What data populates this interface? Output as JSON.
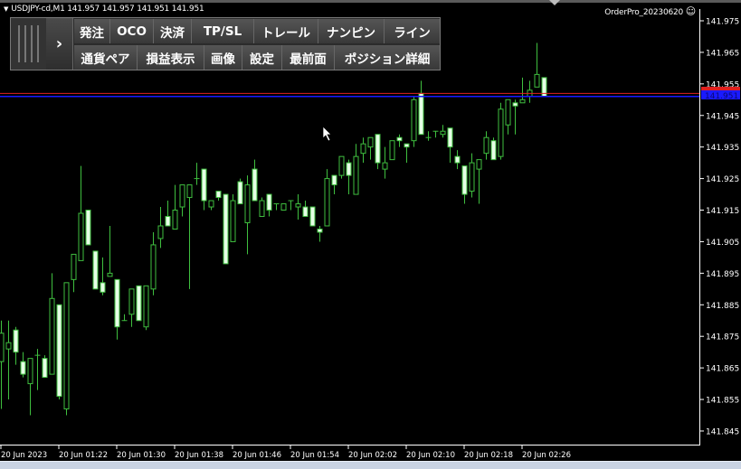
{
  "window": {
    "info_line": "USDJPY-cd,M1  141.957 141.957 141.951 141.951",
    "ea_name": "OrderPro_20230620",
    "ea_icon": "smiley-face-icon"
  },
  "toolbar": {
    "toggle_icon": "chevron-right-icon",
    "row1": [
      "発注",
      "OCO",
      "決済",
      "TP/SL",
      "トレール",
      "ナンピン",
      "ライン"
    ],
    "row2": [
      "通貨ペア",
      "損益表示",
      "画像",
      "設定",
      "最前面",
      "ポジション詳細"
    ]
  },
  "colors": {
    "background": "#000000",
    "candle_outline": "#3fbf3f",
    "bear_body": "#e6ffe6",
    "bull_body": "#000000",
    "ask_line": "#e02020",
    "bid_line": "#1a1aff"
  },
  "price_tags": {
    "bid": "141.951",
    "ask": "141.952"
  },
  "chart_data": {
    "type": "candlestick",
    "symbol": "USDJPY-cd",
    "timeframe": "M1",
    "y_ticks": [
      "141.975",
      "141.965",
      "141.955",
      "141.945",
      "141.935",
      "141.925",
      "141.915",
      "141.905",
      "141.895",
      "141.885",
      "141.875",
      "141.865",
      "141.855",
      "141.845"
    ],
    "x_tick_labels": [
      "20 Jun 2023",
      "20 Jun 01:22",
      "20 Jun 01:30",
      "20 Jun 01:38",
      "20 Jun 01:46",
      "20 Jun 01:54",
      "20 Jun 02:02",
      "20 Jun 02:10",
      "20 Jun 02:18",
      "20 Jun 02:26"
    ],
    "ylim": [
      141.84,
      141.978
    ],
    "ask": 141.952,
    "bid": 141.951,
    "ohlc": [
      [
        141.867,
        141.88,
        141.852,
        141.876
      ],
      [
        141.871,
        141.88,
        141.855,
        141.873
      ],
      [
        141.877,
        141.878,
        141.866,
        141.87
      ],
      [
        141.867,
        141.87,
        141.862,
        141.863
      ],
      [
        141.86,
        141.868,
        141.85,
        141.868
      ],
      [
        141.869,
        141.871,
        141.858,
        141.869
      ],
      [
        141.868,
        141.869,
        141.862,
        141.862
      ],
      [
        141.863,
        141.895,
        141.863,
        141.887
      ],
      [
        141.885,
        141.885,
        141.855,
        141.856
      ],
      [
        141.852,
        141.892,
        141.85,
        141.892
      ],
      [
        141.893,
        141.901,
        141.889,
        141.901
      ],
      [
        141.899,
        141.929,
        141.899,
        141.914
      ],
      [
        141.915,
        141.915,
        141.904,
        141.904
      ],
      [
        141.902,
        141.902,
        141.89,
        141.89
      ],
      [
        141.892,
        141.9,
        141.888,
        141.889
      ],
      [
        141.894,
        141.91,
        141.894,
        141.895
      ],
      [
        141.893,
        141.893,
        141.874,
        141.878
      ],
      [
        141.88,
        141.882,
        141.88,
        141.88
      ],
      [
        141.882,
        141.89,
        141.878,
        141.89
      ],
      [
        141.891,
        141.891,
        141.88,
        141.88
      ],
      [
        141.878,
        141.891,
        141.877,
        141.891
      ],
      [
        141.89,
        141.908,
        141.888,
        141.904
      ],
      [
        141.906,
        141.916,
        141.903,
        141.91
      ],
      [
        141.913,
        141.918,
        141.91,
        141.91
      ],
      [
        141.909,
        141.923,
        141.909,
        141.915
      ],
      [
        141.916,
        141.923,
        141.913,
        141.923
      ],
      [
        141.919,
        141.923,
        141.89,
        141.923
      ],
      [
        141.925,
        141.93,
        141.923,
        141.925
      ],
      [
        141.928,
        141.928,
        141.915,
        141.918
      ],
      [
        141.916,
        141.918,
        141.915,
        141.918
      ],
      [
        141.921,
        141.921,
        141.918,
        141.919
      ],
      [
        141.92,
        141.92,
        141.898,
        141.898
      ],
      [
        141.905,
        141.92,
        141.905,
        141.918
      ],
      [
        141.924,
        141.925,
        141.917,
        141.917
      ],
      [
        141.911,
        141.926,
        141.901,
        141.923
      ],
      [
        141.928,
        141.931,
        141.918,
        141.918
      ],
      [
        141.913,
        141.919,
        141.913,
        141.918
      ],
      [
        141.92,
        141.92,
        141.913,
        141.915
      ],
      [
        141.917,
        141.917,
        141.915,
        141.917
      ],
      [
        141.915,
        141.917,
        141.915,
        141.917
      ],
      [
        141.918,
        141.918,
        141.915,
        141.918
      ],
      [
        141.916,
        141.92,
        141.912,
        141.917
      ],
      [
        141.916,
        141.918,
        141.913,
        141.913
      ],
      [
        141.916,
        141.916,
        141.91,
        141.91
      ],
      [
        141.909,
        141.91,
        141.905,
        141.908
      ],
      [
        141.91,
        141.928,
        141.91,
        141.925
      ],
      [
        141.926,
        141.926,
        141.92,
        141.923
      ],
      [
        141.926,
        141.932,
        141.925,
        141.932
      ],
      [
        141.93,
        141.931,
        141.92,
        141.926
      ],
      [
        141.92,
        141.936,
        141.92,
        141.932
      ],
      [
        141.933,
        141.938,
        141.93,
        141.936
      ],
      [
        141.935,
        141.938,
        141.931,
        141.938
      ],
      [
        141.939,
        141.939,
        141.928,
        141.93
      ],
      [
        141.928,
        141.935,
        141.925,
        141.93
      ],
      [
        141.931,
        141.937,
        141.931,
        141.937
      ],
      [
        141.938,
        141.939,
        141.935,
        141.937
      ],
      [
        141.936,
        141.936,
        141.93,
        141.935
      ],
      [
        141.937,
        141.951,
        141.935,
        141.95
      ],
      [
        141.952,
        141.956,
        141.939,
        141.939
      ],
      [
        141.938,
        141.94,
        141.937,
        141.938
      ],
      [
        141.94,
        141.94,
        141.938,
        141.94
      ],
      [
        141.939,
        141.942,
        141.938,
        141.94
      ],
      [
        141.941,
        141.941,
        141.93,
        141.935
      ],
      [
        141.932,
        141.934,
        141.928,
        141.93
      ],
      [
        141.929,
        141.929,
        141.917,
        141.92
      ],
      [
        141.921,
        141.933,
        141.919,
        141.93
      ],
      [
        141.928,
        141.931,
        141.917,
        141.931
      ],
      [
        141.933,
        141.94,
        141.931,
        141.938
      ],
      [
        141.937,
        141.938,
        141.931,
        141.931
      ],
      [
        141.932,
        141.949,
        141.931,
        141.947
      ],
      [
        141.942,
        141.95,
        141.939,
        141.95
      ],
      [
        141.949,
        141.95,
        141.939,
        141.948
      ],
      [
        141.949,
        141.957,
        141.949,
        141.95
      ],
      [
        141.951,
        141.956,
        141.949,
        141.953
      ],
      [
        141.954,
        141.968,
        141.954,
        141.958
      ],
      [
        141.957,
        141.957,
        141.951,
        141.951
      ]
    ]
  }
}
